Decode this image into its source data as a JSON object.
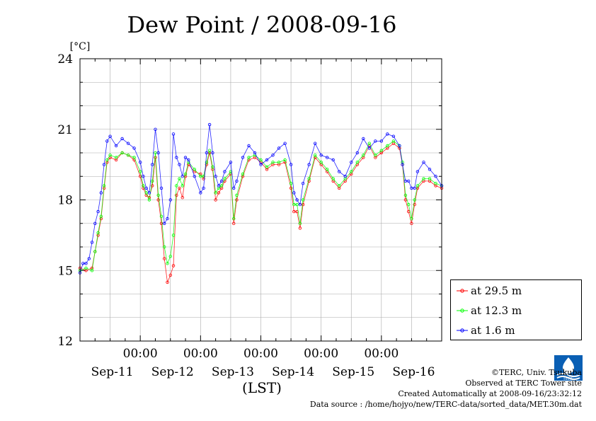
{
  "chart_data": {
    "type": "line",
    "title": "Dew Point / 2008-09-16",
    "ylabel": "[°C]",
    "xlabel": "(LST)",
    "ylim": [
      12,
      24
    ],
    "xlim": [
      0,
      6
    ],
    "y_ticks": [
      12,
      15,
      18,
      21,
      24
    ],
    "x_tick_labels": [
      {
        "x": 1.0,
        "time": "00:00",
        "date": "Sep-11"
      },
      {
        "x": 2.0,
        "time": "00:00",
        "date": "Sep-12"
      },
      {
        "x": 3.0,
        "time": "00:00",
        "date": "Sep-13"
      },
      {
        "x": 4.0,
        "time": "00:00",
        "date": "Sep-14"
      },
      {
        "x": 5.0,
        "time": "00:00",
        "date": "Sep-15"
      }
    ],
    "date_labels": [
      {
        "x": 0.5,
        "text": "Sep-11"
      },
      {
        "x": 1.5,
        "text": "Sep-12"
      },
      {
        "x": 2.5,
        "text": "Sep-13"
      },
      {
        "x": 3.5,
        "text": "Sep-14"
      },
      {
        "x": 4.5,
        "text": "Sep-15"
      },
      {
        "x": 5.5,
        "text": "Sep-16"
      }
    ],
    "grid": true,
    "legend": "bottom-right",
    "series": [
      {
        "name": "at 29.5 m",
        "color": "#ff0000",
        "points": [
          [
            0.0,
            15.1
          ],
          [
            0.1,
            15.0
          ],
          [
            0.2,
            15.1
          ],
          [
            0.25,
            15.8
          ],
          [
            0.3,
            16.5
          ],
          [
            0.35,
            17.2
          ],
          [
            0.4,
            18.5
          ],
          [
            0.45,
            19.6
          ],
          [
            0.5,
            19.8
          ],
          [
            0.6,
            19.7
          ],
          [
            0.7,
            20.0
          ],
          [
            0.8,
            19.9
          ],
          [
            0.9,
            19.7
          ],
          [
            1.0,
            19.0
          ],
          [
            1.05,
            18.5
          ],
          [
            1.1,
            18.2
          ],
          [
            1.15,
            18.1
          ],
          [
            1.2,
            18.6
          ],
          [
            1.25,
            19.8
          ],
          [
            1.3,
            18.0
          ],
          [
            1.35,
            17.0
          ],
          [
            1.4,
            15.5
          ],
          [
            1.45,
            14.5
          ],
          [
            1.5,
            14.8
          ],
          [
            1.55,
            15.2
          ],
          [
            1.6,
            18.2
          ],
          [
            1.65,
            18.5
          ],
          [
            1.7,
            18.1
          ],
          [
            1.75,
            19.0
          ],
          [
            1.8,
            19.5
          ],
          [
            1.9,
            19.2
          ],
          [
            2.0,
            19.1
          ],
          [
            2.05,
            18.9
          ],
          [
            2.1,
            19.5
          ],
          [
            2.15,
            20.0
          ],
          [
            2.2,
            19.3
          ],
          [
            2.25,
            18.0
          ],
          [
            2.3,
            18.3
          ],
          [
            2.35,
            18.5
          ],
          [
            2.4,
            18.8
          ],
          [
            2.5,
            19.1
          ],
          [
            2.55,
            17.0
          ],
          [
            2.6,
            18.0
          ],
          [
            2.7,
            19.0
          ],
          [
            2.8,
            19.7
          ],
          [
            2.9,
            19.8
          ],
          [
            3.0,
            19.6
          ],
          [
            3.1,
            19.3
          ],
          [
            3.2,
            19.5
          ],
          [
            3.3,
            19.5
          ],
          [
            3.4,
            19.6
          ],
          [
            3.5,
            18.5
          ],
          [
            3.55,
            17.5
          ],
          [
            3.6,
            17.5
          ],
          [
            3.65,
            16.8
          ],
          [
            3.7,
            17.8
          ],
          [
            3.8,
            18.8
          ],
          [
            3.9,
            19.8
          ],
          [
            4.0,
            19.5
          ],
          [
            4.1,
            19.2
          ],
          [
            4.2,
            18.8
          ],
          [
            4.3,
            18.5
          ],
          [
            4.4,
            18.8
          ],
          [
            4.5,
            19.1
          ],
          [
            4.6,
            19.5
          ],
          [
            4.7,
            19.8
          ],
          [
            4.8,
            20.3
          ],
          [
            4.9,
            19.8
          ],
          [
            5.0,
            20.0
          ],
          [
            5.1,
            20.2
          ],
          [
            5.2,
            20.4
          ],
          [
            5.3,
            20.2
          ],
          [
            5.35,
            19.5
          ],
          [
            5.4,
            18.0
          ],
          [
            5.45,
            17.5
          ],
          [
            5.5,
            17.0
          ],
          [
            5.55,
            17.8
          ],
          [
            5.6,
            18.5
          ],
          [
            5.7,
            18.8
          ],
          [
            5.8,
            18.8
          ],
          [
            5.9,
            18.6
          ],
          [
            6.0,
            18.5
          ]
        ]
      },
      {
        "name": "at 12.3 m",
        "color": "#00ff00",
        "points": [
          [
            0.0,
            15.0
          ],
          [
            0.1,
            15.1
          ],
          [
            0.2,
            15.0
          ],
          [
            0.25,
            15.8
          ],
          [
            0.3,
            16.6
          ],
          [
            0.35,
            17.3
          ],
          [
            0.4,
            18.6
          ],
          [
            0.45,
            19.7
          ],
          [
            0.5,
            19.9
          ],
          [
            0.6,
            19.8
          ],
          [
            0.7,
            20.0
          ],
          [
            0.8,
            19.9
          ],
          [
            0.9,
            19.8
          ],
          [
            1.0,
            19.2
          ],
          [
            1.05,
            18.6
          ],
          [
            1.1,
            18.3
          ],
          [
            1.15,
            18.0
          ],
          [
            1.2,
            18.8
          ],
          [
            1.25,
            20.0
          ],
          [
            1.3,
            18.2
          ],
          [
            1.35,
            17.3
          ],
          [
            1.4,
            16.0
          ],
          [
            1.45,
            15.3
          ],
          [
            1.5,
            15.6
          ],
          [
            1.55,
            16.5
          ],
          [
            1.6,
            18.6
          ],
          [
            1.65,
            18.9
          ],
          [
            1.7,
            18.6
          ],
          [
            1.75,
            19.1
          ],
          [
            1.8,
            19.6
          ],
          [
            1.9,
            19.3
          ],
          [
            2.0,
            19.0
          ],
          [
            2.05,
            19.0
          ],
          [
            2.1,
            19.6
          ],
          [
            2.15,
            20.1
          ],
          [
            2.2,
            19.4
          ],
          [
            2.25,
            18.3
          ],
          [
            2.3,
            18.5
          ],
          [
            2.35,
            18.6
          ],
          [
            2.4,
            18.9
          ],
          [
            2.5,
            19.2
          ],
          [
            2.55,
            17.2
          ],
          [
            2.6,
            18.2
          ],
          [
            2.7,
            19.1
          ],
          [
            2.8,
            19.8
          ],
          [
            2.9,
            19.9
          ],
          [
            3.0,
            19.7
          ],
          [
            3.1,
            19.4
          ],
          [
            3.2,
            19.6
          ],
          [
            3.3,
            19.6
          ],
          [
            3.4,
            19.7
          ],
          [
            3.5,
            18.7
          ],
          [
            3.55,
            17.8
          ],
          [
            3.6,
            17.8
          ],
          [
            3.65,
            17.0
          ],
          [
            3.7,
            18.0
          ],
          [
            3.8,
            18.9
          ],
          [
            3.9,
            19.9
          ],
          [
            4.0,
            19.6
          ],
          [
            4.1,
            19.3
          ],
          [
            4.2,
            18.9
          ],
          [
            4.3,
            18.6
          ],
          [
            4.4,
            18.9
          ],
          [
            4.5,
            19.2
          ],
          [
            4.6,
            19.6
          ],
          [
            4.7,
            19.9
          ],
          [
            4.8,
            20.4
          ],
          [
            4.9,
            19.9
          ],
          [
            5.0,
            20.1
          ],
          [
            5.1,
            20.3
          ],
          [
            5.2,
            20.5
          ],
          [
            5.3,
            20.3
          ],
          [
            5.35,
            19.6
          ],
          [
            5.4,
            18.2
          ],
          [
            5.45,
            17.8
          ],
          [
            5.5,
            17.2
          ],
          [
            5.55,
            18.0
          ],
          [
            5.6,
            18.6
          ],
          [
            5.7,
            18.9
          ],
          [
            5.8,
            18.9
          ],
          [
            5.9,
            18.7
          ],
          [
            6.0,
            18.6
          ]
        ]
      },
      {
        "name": "at 1.6 m",
        "color": "#0000ff",
        "points": [
          [
            0.0,
            14.9
          ],
          [
            0.05,
            15.3
          ],
          [
            0.1,
            15.3
          ],
          [
            0.15,
            15.5
          ],
          [
            0.2,
            16.2
          ],
          [
            0.25,
            17.0
          ],
          [
            0.3,
            17.5
          ],
          [
            0.35,
            18.3
          ],
          [
            0.4,
            19.5
          ],
          [
            0.45,
            20.5
          ],
          [
            0.5,
            20.7
          ],
          [
            0.6,
            20.3
          ],
          [
            0.7,
            20.6
          ],
          [
            0.8,
            20.4
          ],
          [
            0.9,
            20.2
          ],
          [
            1.0,
            19.6
          ],
          [
            1.05,
            19.0
          ],
          [
            1.1,
            18.5
          ],
          [
            1.15,
            18.3
          ],
          [
            1.2,
            19.5
          ],
          [
            1.25,
            21.0
          ],
          [
            1.3,
            20.0
          ],
          [
            1.35,
            18.5
          ],
          [
            1.4,
            17.0
          ],
          [
            1.45,
            17.2
          ],
          [
            1.5,
            18.0
          ],
          [
            1.55,
            20.8
          ],
          [
            1.6,
            19.8
          ],
          [
            1.65,
            19.5
          ],
          [
            1.7,
            19.0
          ],
          [
            1.75,
            19.8
          ],
          [
            1.8,
            19.7
          ],
          [
            1.9,
            19.0
          ],
          [
            2.0,
            18.3
          ],
          [
            2.05,
            18.5
          ],
          [
            2.1,
            20.0
          ],
          [
            2.15,
            21.2
          ],
          [
            2.2,
            20.0
          ],
          [
            2.25,
            19.0
          ],
          [
            2.3,
            18.6
          ],
          [
            2.35,
            18.8
          ],
          [
            2.4,
            19.2
          ],
          [
            2.5,
            19.6
          ],
          [
            2.55,
            18.5
          ],
          [
            2.6,
            18.8
          ],
          [
            2.7,
            19.8
          ],
          [
            2.8,
            20.3
          ],
          [
            2.9,
            20.0
          ],
          [
            3.0,
            19.5
          ],
          [
            3.1,
            19.7
          ],
          [
            3.2,
            19.9
          ],
          [
            3.3,
            20.2
          ],
          [
            3.4,
            20.4
          ],
          [
            3.5,
            19.5
          ],
          [
            3.55,
            18.3
          ],
          [
            3.6,
            18.0
          ],
          [
            3.65,
            17.8
          ],
          [
            3.7,
            18.7
          ],
          [
            3.8,
            19.5
          ],
          [
            3.9,
            20.4
          ],
          [
            4.0,
            19.9
          ],
          [
            4.1,
            19.8
          ],
          [
            4.2,
            19.7
          ],
          [
            4.3,
            19.2
          ],
          [
            4.4,
            19.0
          ],
          [
            4.5,
            19.6
          ],
          [
            4.6,
            20.0
          ],
          [
            4.7,
            20.6
          ],
          [
            4.8,
            20.2
          ],
          [
            4.9,
            20.5
          ],
          [
            5.0,
            20.5
          ],
          [
            5.1,
            20.8
          ],
          [
            5.2,
            20.7
          ],
          [
            5.3,
            20.3
          ],
          [
            5.35,
            19.5
          ],
          [
            5.4,
            18.8
          ],
          [
            5.45,
            18.8
          ],
          [
            5.5,
            18.5
          ],
          [
            5.55,
            18.5
          ],
          [
            5.6,
            19.2
          ],
          [
            5.7,
            19.6
          ],
          [
            5.8,
            19.3
          ],
          [
            5.9,
            19.0
          ],
          [
            6.0,
            18.6
          ]
        ]
      }
    ]
  },
  "footer": {
    "line1": "©TERC, Univ. Tsukuba",
    "line2": "Observed at TERC Tower site",
    "line3": "Created Automatically at 2008-09-16/23:32:12",
    "line4": "Data source : /home/hojyo/new/TERC-data/sorted_data/MET.30m.dat"
  }
}
